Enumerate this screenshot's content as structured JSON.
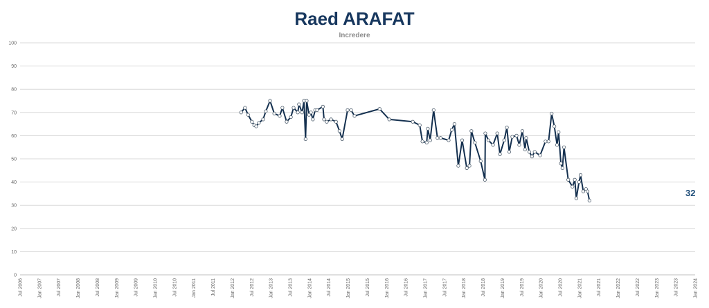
{
  "chart_data": {
    "type": "line",
    "title": "Raed ARAFAT",
    "subtitle": "Incredere",
    "xlabel": "",
    "ylabel": "",
    "ylim": [
      0,
      100
    ],
    "xlim": [
      2006.5,
      2024.0
    ],
    "grid": true,
    "y_ticks": [
      "0",
      "10",
      "20",
      "30",
      "40",
      "50",
      "60",
      "70",
      "80",
      "90",
      "100"
    ],
    "x_ticks": [
      "Jul 2006",
      "Jan 2007",
      "Jul 2007",
      "Jan 2008",
      "Jul 2008",
      "Jan 2009",
      "Jul 2009",
      "Jan 2010",
      "Jul 2010",
      "Jan 2011",
      "Jul 2011",
      "Jan 2012",
      "Jul 2012",
      "Jan 2013",
      "Jul 2013",
      "Jan 2014",
      "Jul 2014",
      "Jan 2015",
      "Jul 2015",
      "Jan 2016",
      "Jul 2016",
      "Jan 2017",
      "Jul 2017",
      "Jan 2018",
      "Jul 2018",
      "Jan 2019",
      "Jul 2019",
      "Jan 2020",
      "Jul 2020",
      "Jan 2021",
      "Jul 2021",
      "Jan 2022",
      "Jul 2022",
      "Jan 2023",
      "Jul 2023",
      "Jan 2024"
    ],
    "last_value_label": "32",
    "colors": {
      "line": "#14304f",
      "marker_fill": "#ffffff",
      "grid": "#d9d9d9"
    },
    "series": [
      {
        "name": "Incredere",
        "points": [
          [
            2012.23,
            70
          ],
          [
            2012.33,
            72
          ],
          [
            2012.41,
            69
          ],
          [
            2012.51,
            66
          ],
          [
            2012.57,
            64.5
          ],
          [
            2012.62,
            64
          ],
          [
            2012.69,
            65.5
          ],
          [
            2012.8,
            67
          ],
          [
            2012.87,
            70.5
          ],
          [
            2012.98,
            75
          ],
          [
            2013.09,
            69.5
          ],
          [
            2013.23,
            68.5
          ],
          [
            2013.3,
            72
          ],
          [
            2013.41,
            66
          ],
          [
            2013.52,
            68
          ],
          [
            2013.59,
            72
          ],
          [
            2013.7,
            70
          ],
          [
            2013.73,
            73.5
          ],
          [
            2013.81,
            70
          ],
          [
            2013.86,
            75
          ],
          [
            2013.9,
            58.5
          ],
          [
            2013.93,
            75
          ],
          [
            2013.99,
            69
          ],
          [
            2014.04,
            70
          ],
          [
            2014.09,
            67
          ],
          [
            2014.15,
            71
          ],
          [
            2014.2,
            71
          ],
          [
            2014.35,
            72.5
          ],
          [
            2014.38,
            67
          ],
          [
            2014.45,
            66
          ],
          [
            2014.56,
            67
          ],
          [
            2014.69,
            66
          ],
          [
            2014.78,
            62
          ],
          [
            2014.85,
            58.5
          ],
          [
            2014.99,
            71
          ],
          [
            2015.08,
            71
          ],
          [
            2015.17,
            68.5
          ],
          [
            2015.82,
            71.5
          ],
          [
            2016.07,
            67
          ],
          [
            2016.68,
            66
          ],
          [
            2016.86,
            64.5
          ],
          [
            2016.93,
            57.5
          ],
          [
            2017.04,
            57
          ],
          [
            2017.07,
            63
          ],
          [
            2017.13,
            58
          ],
          [
            2017.22,
            71
          ],
          [
            2017.32,
            59
          ],
          [
            2017.4,
            59
          ],
          [
            2017.61,
            58
          ],
          [
            2017.69,
            62.5
          ],
          [
            2017.76,
            65
          ],
          [
            2017.86,
            47
          ],
          [
            2017.96,
            58
          ],
          [
            2018.08,
            46
          ],
          [
            2018.15,
            47
          ],
          [
            2018.2,
            62
          ],
          [
            2018.29,
            57
          ],
          [
            2018.44,
            49
          ],
          [
            2018.55,
            41
          ],
          [
            2018.56,
            61
          ],
          [
            2018.64,
            58
          ],
          [
            2018.76,
            56
          ],
          [
            2018.87,
            61
          ],
          [
            2018.94,
            52
          ],
          [
            2019.05,
            58
          ],
          [
            2019.12,
            63.5
          ],
          [
            2019.18,
            53
          ],
          [
            2019.26,
            59.5
          ],
          [
            2019.37,
            60
          ],
          [
            2019.44,
            56
          ],
          [
            2019.52,
            62
          ],
          [
            2019.59,
            54
          ],
          [
            2019.62,
            59
          ],
          [
            2019.7,
            53
          ],
          [
            2019.77,
            51
          ],
          [
            2019.84,
            53
          ],
          [
            2019.98,
            51.5
          ],
          [
            2020.12,
            57.5
          ],
          [
            2020.2,
            57.5
          ],
          [
            2020.28,
            69.5
          ],
          [
            2020.35,
            64
          ],
          [
            2020.42,
            56
          ],
          [
            2020.46,
            61.5
          ],
          [
            2020.52,
            48
          ],
          [
            2020.56,
            46
          ],
          [
            2020.6,
            55
          ],
          [
            2020.71,
            41
          ],
          [
            2020.82,
            38
          ],
          [
            2020.88,
            41
          ],
          [
            2020.92,
            33
          ],
          [
            2020.99,
            40
          ],
          [
            2021.03,
            43
          ],
          [
            2021.1,
            36
          ],
          [
            2021.17,
            37
          ],
          [
            2021.21,
            36
          ],
          [
            2021.26,
            32
          ]
        ]
      }
    ]
  }
}
